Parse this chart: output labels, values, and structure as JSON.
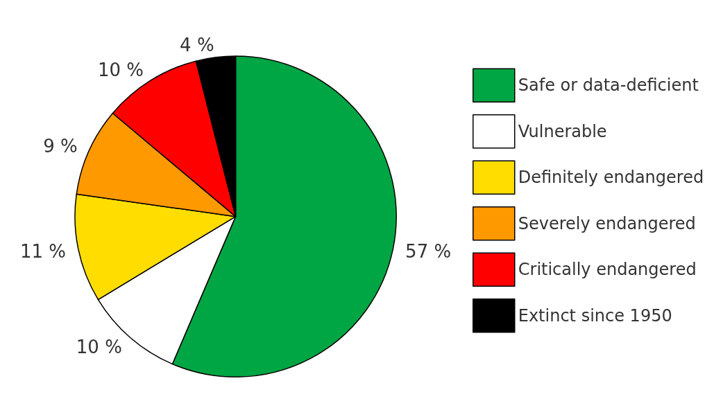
{
  "chart_data": {
    "type": "pie",
    "categories": [
      "Safe or data-deficient",
      "Vulnerable",
      "Definitely endangered",
      "Severely endangered",
      "Critically endangered",
      "Extinct since 1950"
    ],
    "values": [
      57,
      10,
      11,
      9,
      10,
      4
    ],
    "value_labels": [
      "57 %",
      "10 %",
      "11 %",
      "9 %",
      "10 %",
      "4 %"
    ],
    "colors": [
      "#00a643",
      "#ffffff",
      "#ffdd00",
      "#ff9900",
      "#ff0000",
      "#000000"
    ],
    "legend": "right"
  }
}
